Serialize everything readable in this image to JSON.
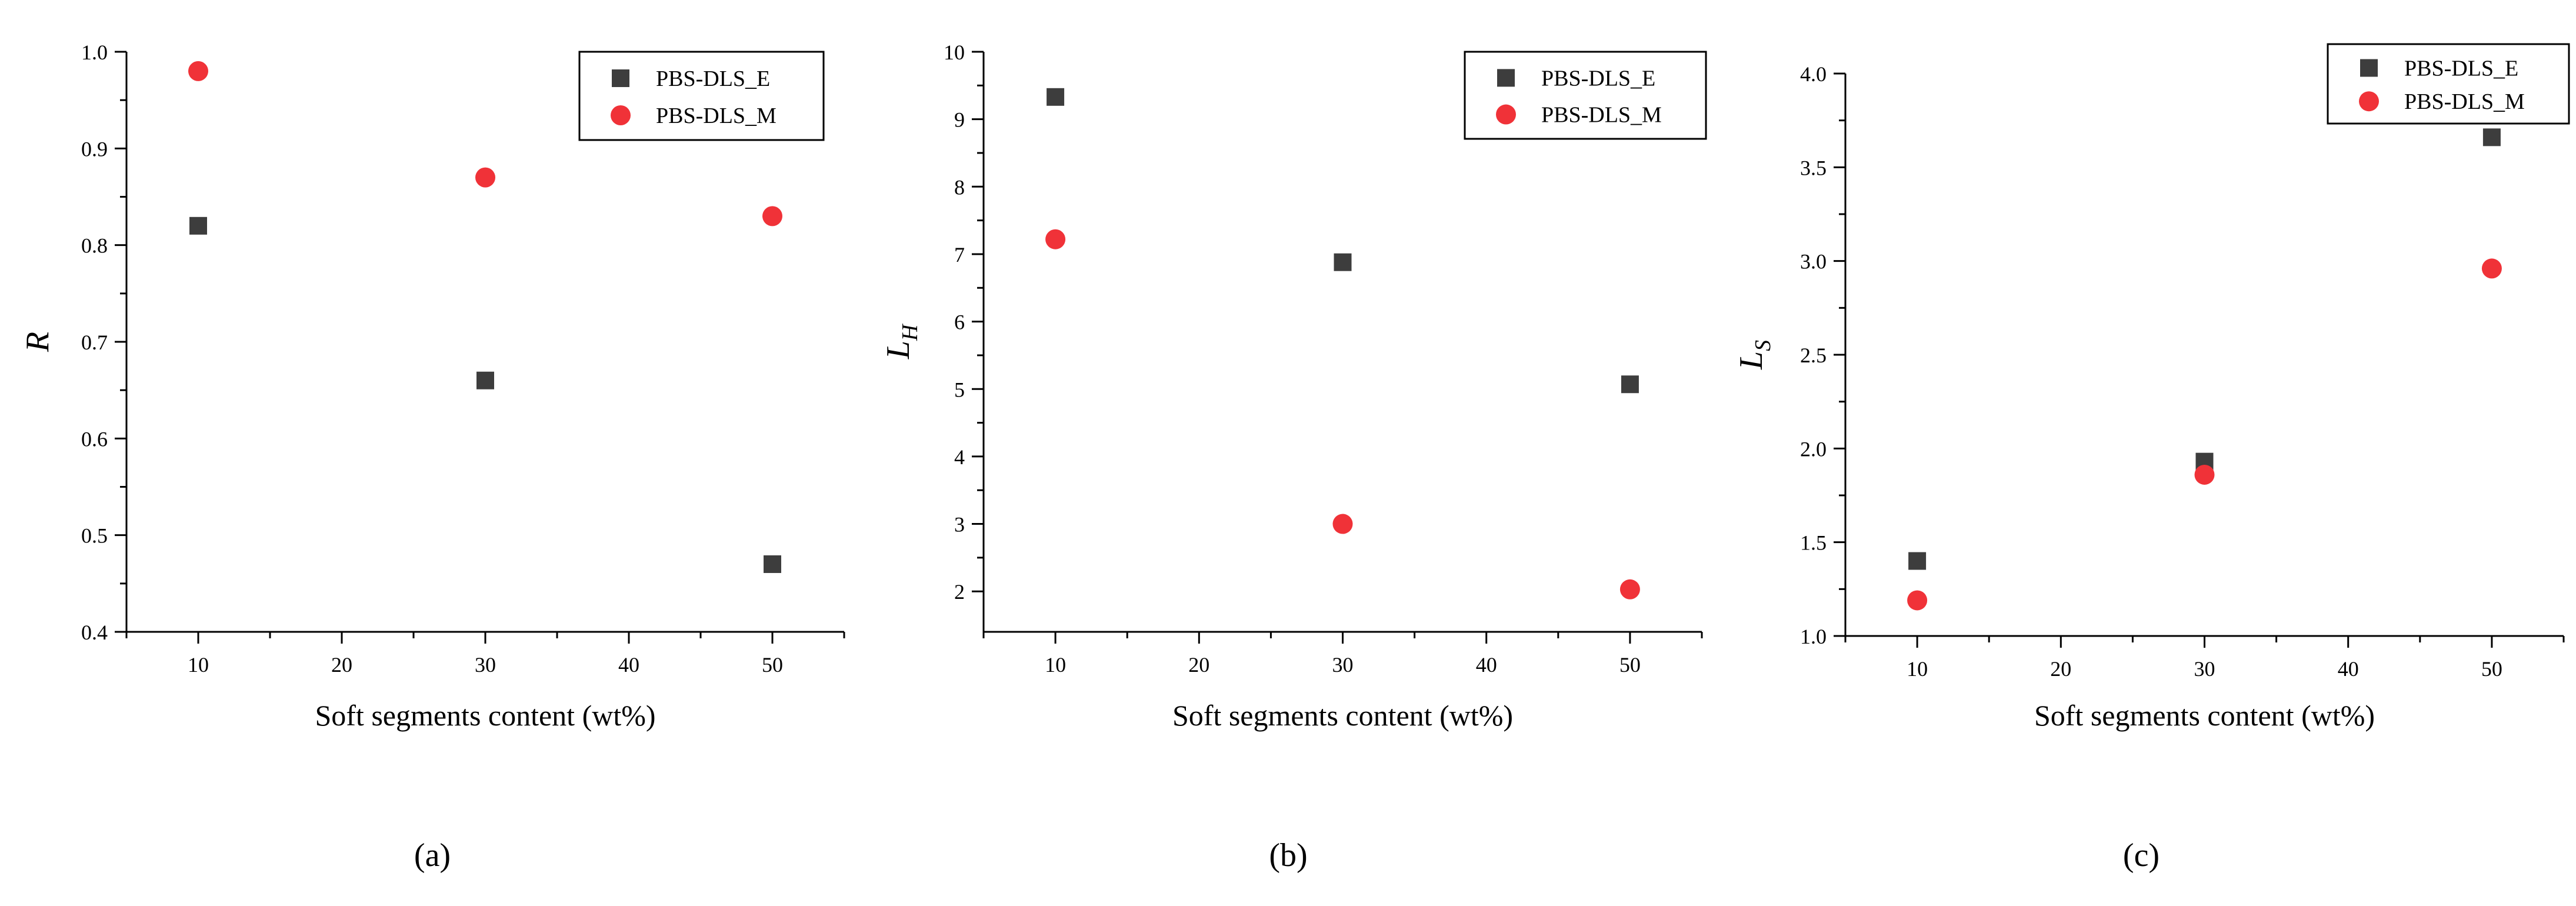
{
  "chart_data": [
    {
      "panel": "(a)",
      "type": "scatter",
      "xlabel": "Soft segments content (wt%)",
      "ylabel": "R",
      "ylabel_sub": "",
      "xlim": [
        5,
        55
      ],
      "ylim": [
        0.4,
        1.0
      ],
      "xticks": [
        "10",
        "20",
        "30",
        "40",
        "50"
      ],
      "yticks": [
        "0.4",
        "0.5",
        "0.6",
        "0.7",
        "0.8",
        "0.9",
        "1.0"
      ],
      "legend_position": "top-right",
      "series": [
        {
          "name": "PBS-DLS_E",
          "marker": "square",
          "color": "#3d3d3d",
          "x": [
            10,
            30,
            50
          ],
          "y": [
            0.82,
            0.66,
            0.47
          ]
        },
        {
          "name": "PBS-DLS_M",
          "marker": "circle",
          "color": "#f03238",
          "x": [
            10,
            30,
            50
          ],
          "y": [
            0.98,
            0.87,
            0.83
          ]
        }
      ]
    },
    {
      "panel": "(b)",
      "type": "scatter",
      "xlabel": "Soft segments content (wt%)",
      "ylabel": "L",
      "ylabel_sub": "H",
      "xlim": [
        5,
        55
      ],
      "ylim": [
        1.4,
        10
      ],
      "xticks": [
        "10",
        "20",
        "30",
        "40",
        "50"
      ],
      "yticks": [
        "2",
        "3",
        "4",
        "5",
        "6",
        "7",
        "8",
        "9",
        "10"
      ],
      "legend_position": "top-right",
      "series": [
        {
          "name": "PBS-DLS_E",
          "marker": "square",
          "color": "#3d3d3d",
          "x": [
            10,
            30,
            50
          ],
          "y": [
            9.33,
            6.88,
            5.07
          ]
        },
        {
          "name": "PBS-DLS_M",
          "marker": "circle",
          "color": "#f03238",
          "x": [
            10,
            30,
            50
          ],
          "y": [
            7.22,
            3.0,
            2.03
          ]
        }
      ]
    },
    {
      "panel": "(c)",
      "type": "scatter",
      "xlabel": "Soft segments content (wt%)",
      "ylabel": "L",
      "ylabel_sub": "S",
      "xlim": [
        5,
        55
      ],
      "ylim": [
        1.0,
        4.0
      ],
      "xticks": [
        "10",
        "20",
        "30",
        "40",
        "50"
      ],
      "yticks": [
        "1.0",
        "1.5",
        "2.0",
        "2.5",
        "3.0",
        "3.5",
        "4.0"
      ],
      "legend_position": "top-right",
      "series": [
        {
          "name": "PBS-DLS_E",
          "marker": "square",
          "color": "#3d3d3d",
          "x": [
            10,
            30,
            50
          ],
          "y": [
            1.4,
            1.93,
            3.66
          ]
        },
        {
          "name": "PBS-DLS_M",
          "marker": "circle",
          "color": "#f03238",
          "x": [
            10,
            30,
            50
          ],
          "y": [
            1.19,
            1.86,
            2.96
          ]
        }
      ]
    }
  ]
}
